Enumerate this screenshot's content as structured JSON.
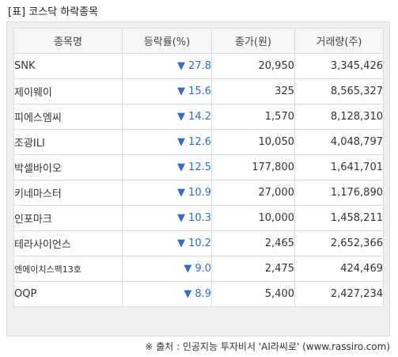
{
  "title": "[표] 코스닥 하락종목",
  "table": {
    "headers": [
      "종목명",
      "등락률(%)",
      "종가(원)",
      "거래량(주)"
    ],
    "rows": [
      {
        "name": "SNK",
        "direction": "down",
        "change": "27.8",
        "close": "20,950",
        "volume": "3,345,426"
      },
      {
        "name": "제이웨이",
        "direction": "down",
        "change": "15.6",
        "close": "325",
        "volume": "8,565,327"
      },
      {
        "name": "피에스엠씨",
        "direction": "down",
        "change": "14.2",
        "close": "1,570",
        "volume": "8,128,310"
      },
      {
        "name": "조광ILI",
        "direction": "down",
        "change": "12.6",
        "close": "10,050",
        "volume": "4,048,797"
      },
      {
        "name": "박셀바이오",
        "direction": "down",
        "change": "12.5",
        "close": "177,800",
        "volume": "1,641,701"
      },
      {
        "name": "키네마스터",
        "direction": "down",
        "change": "10.9",
        "close": "27,000",
        "volume": "1,176,890"
      },
      {
        "name": "인포마크",
        "direction": "down",
        "change": "10.3",
        "close": "10,000",
        "volume": "1,458,211"
      },
      {
        "name": "테라사이언스",
        "direction": "down",
        "change": "10.2",
        "close": "2,465",
        "volume": "2,652,366"
      },
      {
        "name": "엔에이치스팩13호",
        "direction": "down",
        "change": "9.0",
        "close": "2,475",
        "volume": "424,469"
      },
      {
        "name": "OQP",
        "direction": "down",
        "change": "8.9",
        "close": "5,400",
        "volume": "2,427,234"
      }
    ]
  },
  "down_symbol": "▼",
  "colors": {
    "down": "#2f6fbf",
    "header_bg": "#f6f6f6",
    "frame_bg": "#efefef"
  },
  "source": "※ 출처 : 인공지능 투자비서 'AI라씨로' (www.rassiro.com)"
}
